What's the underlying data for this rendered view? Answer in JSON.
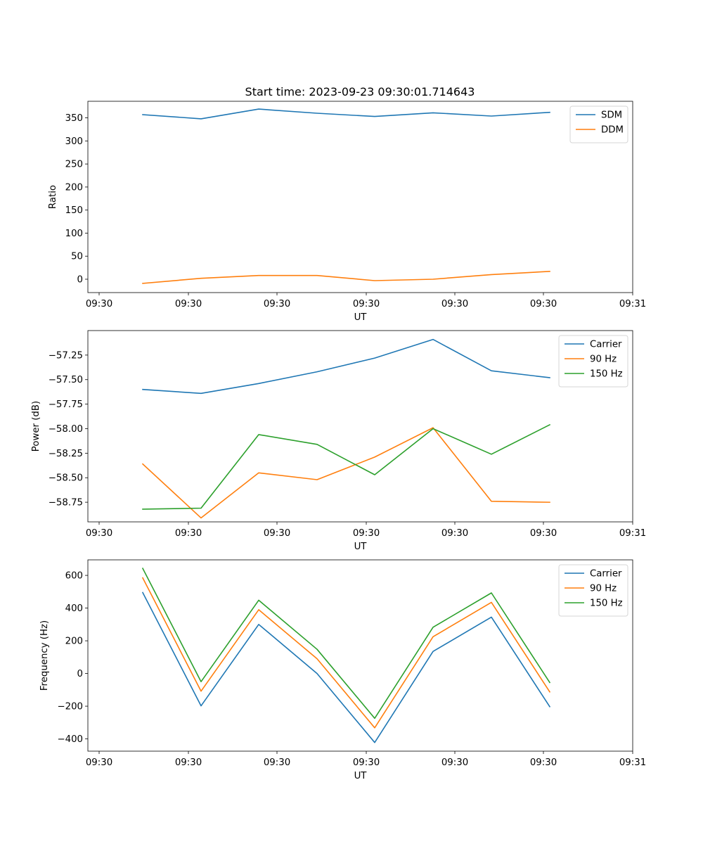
{
  "figure": {
    "title": "Start time: 2023-09-23 09:30:01.714643"
  },
  "chart_data": [
    {
      "type": "line",
      "title": "Start time: 2023-09-23 09:30:01.714643",
      "xlabel": "UT",
      "ylabel": "Ratio",
      "x_tick_labels": [
        "09:30",
        "09:30",
        "09:30",
        "09:30",
        "09:30",
        "09:30",
        "09:30",
        "09:31"
      ],
      "y_ticks": [
        0,
        50,
        100,
        150,
        200,
        250,
        300,
        350
      ],
      "ylim": [
        -29,
        386
      ],
      "legend_position": "top-right",
      "series": [
        {
          "name": "SDM",
          "color": "#1f77b4",
          "values": [
            357,
            348,
            369,
            360,
            353,
            361,
            354,
            362
          ]
        },
        {
          "name": "DDM",
          "color": "#ff7f0e",
          "values": [
            -9,
            2,
            8,
            8,
            -3,
            0,
            10,
            17
          ]
        }
      ]
    },
    {
      "type": "line",
      "title": "",
      "xlabel": "UT",
      "ylabel": "Power (dB)",
      "x_tick_labels": [
        "09:30",
        "09:30",
        "09:30",
        "09:30",
        "09:30",
        "09:30",
        "09:30",
        "09:31"
      ],
      "y_ticks": [
        -58.75,
        -58.5,
        -58.25,
        -58.0,
        -57.75,
        -57.5,
        -57.25
      ],
      "y_tick_labels": [
        "−58.75",
        "−58.50",
        "−58.25",
        "−58.00",
        "−57.75",
        "−57.50",
        "−57.25"
      ],
      "ylim": [
        -58.95,
        -57.0
      ],
      "legend_position": "top-right",
      "series": [
        {
          "name": "Carrier",
          "color": "#1f77b4",
          "values": [
            -57.6,
            -57.64,
            -57.54,
            -57.42,
            -57.28,
            -57.09,
            -57.41,
            -57.48
          ]
        },
        {
          "name": "90 Hz",
          "color": "#ff7f0e",
          "values": [
            -58.36,
            -58.91,
            -58.45,
            -58.52,
            -58.29,
            -57.99,
            -58.74,
            -58.75
          ]
        },
        {
          "name": "150 Hz",
          "color": "#2ca02c",
          "values": [
            -58.82,
            -58.81,
            -58.06,
            -58.16,
            -58.47,
            -58.0,
            -58.26,
            -57.96
          ]
        }
      ]
    },
    {
      "type": "line",
      "title": "",
      "xlabel": "UT",
      "ylabel": "Frequency (Hz)",
      "x_tick_labels": [
        "09:30",
        "09:30",
        "09:30",
        "09:30",
        "09:30",
        "09:30",
        "09:30",
        "09:31"
      ],
      "y_ticks": [
        -400,
        -200,
        0,
        200,
        400,
        600
      ],
      "y_tick_labels": [
        "−400",
        "−200",
        "0",
        "200",
        "400",
        "600"
      ],
      "ylim": [
        -475,
        695
      ],
      "legend_position": "top-right",
      "series": [
        {
          "name": "Carrier",
          "color": "#1f77b4",
          "values": [
            495,
            -198,
            300,
            0,
            -422,
            135,
            345,
            -203
          ]
        },
        {
          "name": "90 Hz",
          "color": "#ff7f0e",
          "values": [
            585,
            -108,
            390,
            90,
            -332,
            225,
            435,
            -113
          ]
        },
        {
          "name": "150 Hz",
          "color": "#2ca02c",
          "values": [
            643,
            -50,
            448,
            148,
            -274,
            283,
            493,
            -55
          ]
        }
      ]
    }
  ]
}
